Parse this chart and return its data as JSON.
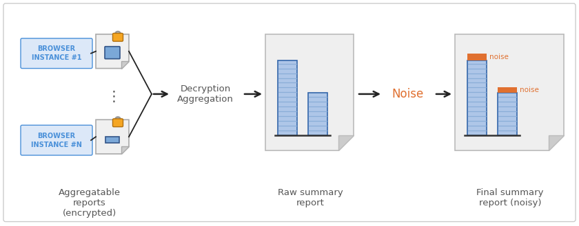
{
  "bg_color": "#ffffff",
  "border_color": "#cccccc",
  "fig_width": 8.4,
  "fig_height": 3.29,
  "browser_box_color": "#dce8f8",
  "browser_box_edge": "#4a90d9",
  "browser_text_color": "#4a90d9",
  "browser_text_1": "BROWSER\nINSTANCE #1",
  "browser_text_n": "BROWSER\nINSTANCE #N",
  "doc_body_color": "#e8e8e8",
  "doc_fold_color": "#cccccc",
  "doc_edge": "#aaaaaa",
  "lock_body_color": "#f5a623",
  "lock_shackle_color": "#999999",
  "bar_fill": "#aec6e8",
  "bar_edge": "#3366aa",
  "bar_stripe": "#8aaed8",
  "noise_color": "#e07030",
  "noise_text": "noise",
  "arrow_color": "#222222",
  "label_color": "#555555",
  "decrypt_text": "Decryption\nAggregation",
  "noise_label": "Noise",
  "raw_label": "Raw summary\nreport",
  "final_label": "Final summary\nreport (noisy)",
  "agg_label": "Aggregatable\nreports\n(encrypted)",
  "label_fontsize": 9.5,
  "small_fontsize": 7.5,
  "browser_fontsize": 7.0
}
